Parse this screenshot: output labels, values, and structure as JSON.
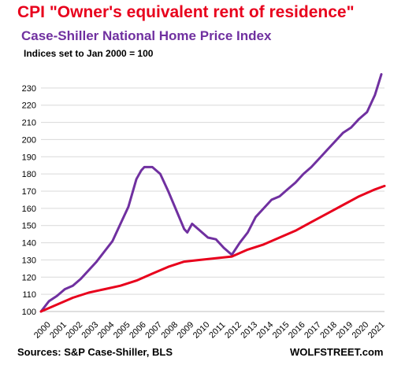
{
  "chart_data": {
    "type": "line",
    "title": "CPI \"Owner's equivalent rent of residence\"",
    "subtitle": "Case-Shiller  National  Home Price  Index",
    "note": "Indices set to Jan 2000 = 100",
    "ylim": [
      100,
      240
    ],
    "yticks": [
      100,
      110,
      120,
      130,
      140,
      150,
      160,
      170,
      180,
      190,
      200,
      210,
      220,
      230
    ],
    "xlim": [
      2000,
      2021.6
    ],
    "xticks": [
      "2000",
      "2001",
      "2002",
      "2003",
      "2004",
      "2005",
      "2006",
      "2007",
      "2008",
      "2009",
      "2010",
      "2011",
      "2012",
      "2013",
      "2014",
      "2015",
      "2016",
      "2017",
      "2018",
      "2019",
      "2020",
      "2021"
    ],
    "grid": "horizontal",
    "series": [
      {
        "name": "Case-Shiller National Home Price Index",
        "color": "#7030a0",
        "x": [
          2000,
          2000.5,
          2001,
          2001.5,
          2002,
          2002.5,
          2003,
          2003.5,
          2004,
          2004.5,
          2005,
          2005.5,
          2006,
          2006.3,
          2006.5,
          2007,
          2007.5,
          2008,
          2008.5,
          2009,
          2009.2,
          2009.5,
          2010,
          2010.5,
          2011,
          2011.5,
          2012,
          2012.5,
          2013,
          2013.5,
          2014,
          2014.5,
          2015,
          2015.5,
          2016,
          2016.5,
          2017,
          2017.5,
          2018,
          2018.5,
          2019,
          2019.5,
          2020,
          2020.5,
          2021,
          2021.4
        ],
        "values": [
          100,
          106,
          109,
          113,
          115,
          119,
          124,
          129,
          135,
          141,
          151,
          161,
          177,
          182,
          184,
          184,
          180,
          170,
          159,
          148,
          146,
          151,
          147,
          143,
          142,
          137,
          133,
          140,
          146,
          155,
          160,
          165,
          167,
          171,
          175,
          180,
          184,
          189,
          194,
          199,
          204,
          207,
          212,
          216,
          226,
          238
        ]
      },
      {
        "name": "CPI Owner's equivalent rent of residence",
        "color": "#e8001c",
        "x": [
          2000,
          2001,
          2002,
          2003,
          2004,
          2005,
          2006,
          2007,
          2008,
          2009,
          2010,
          2011,
          2012,
          2013,
          2014,
          2015,
          2016,
          2017,
          2018,
          2019,
          2020,
          2021,
          2021.6
        ],
        "values": [
          100,
          104,
          108,
          111,
          113,
          115,
          118,
          122,
          126,
          129,
          130,
          131,
          132,
          136,
          139,
          143,
          147,
          152,
          157,
          162,
          167,
          171,
          173
        ]
      }
    ]
  },
  "footer": {
    "source": "Sources: S&P Case-Shiller, BLS",
    "brand": "WOLFSTREET.com"
  }
}
